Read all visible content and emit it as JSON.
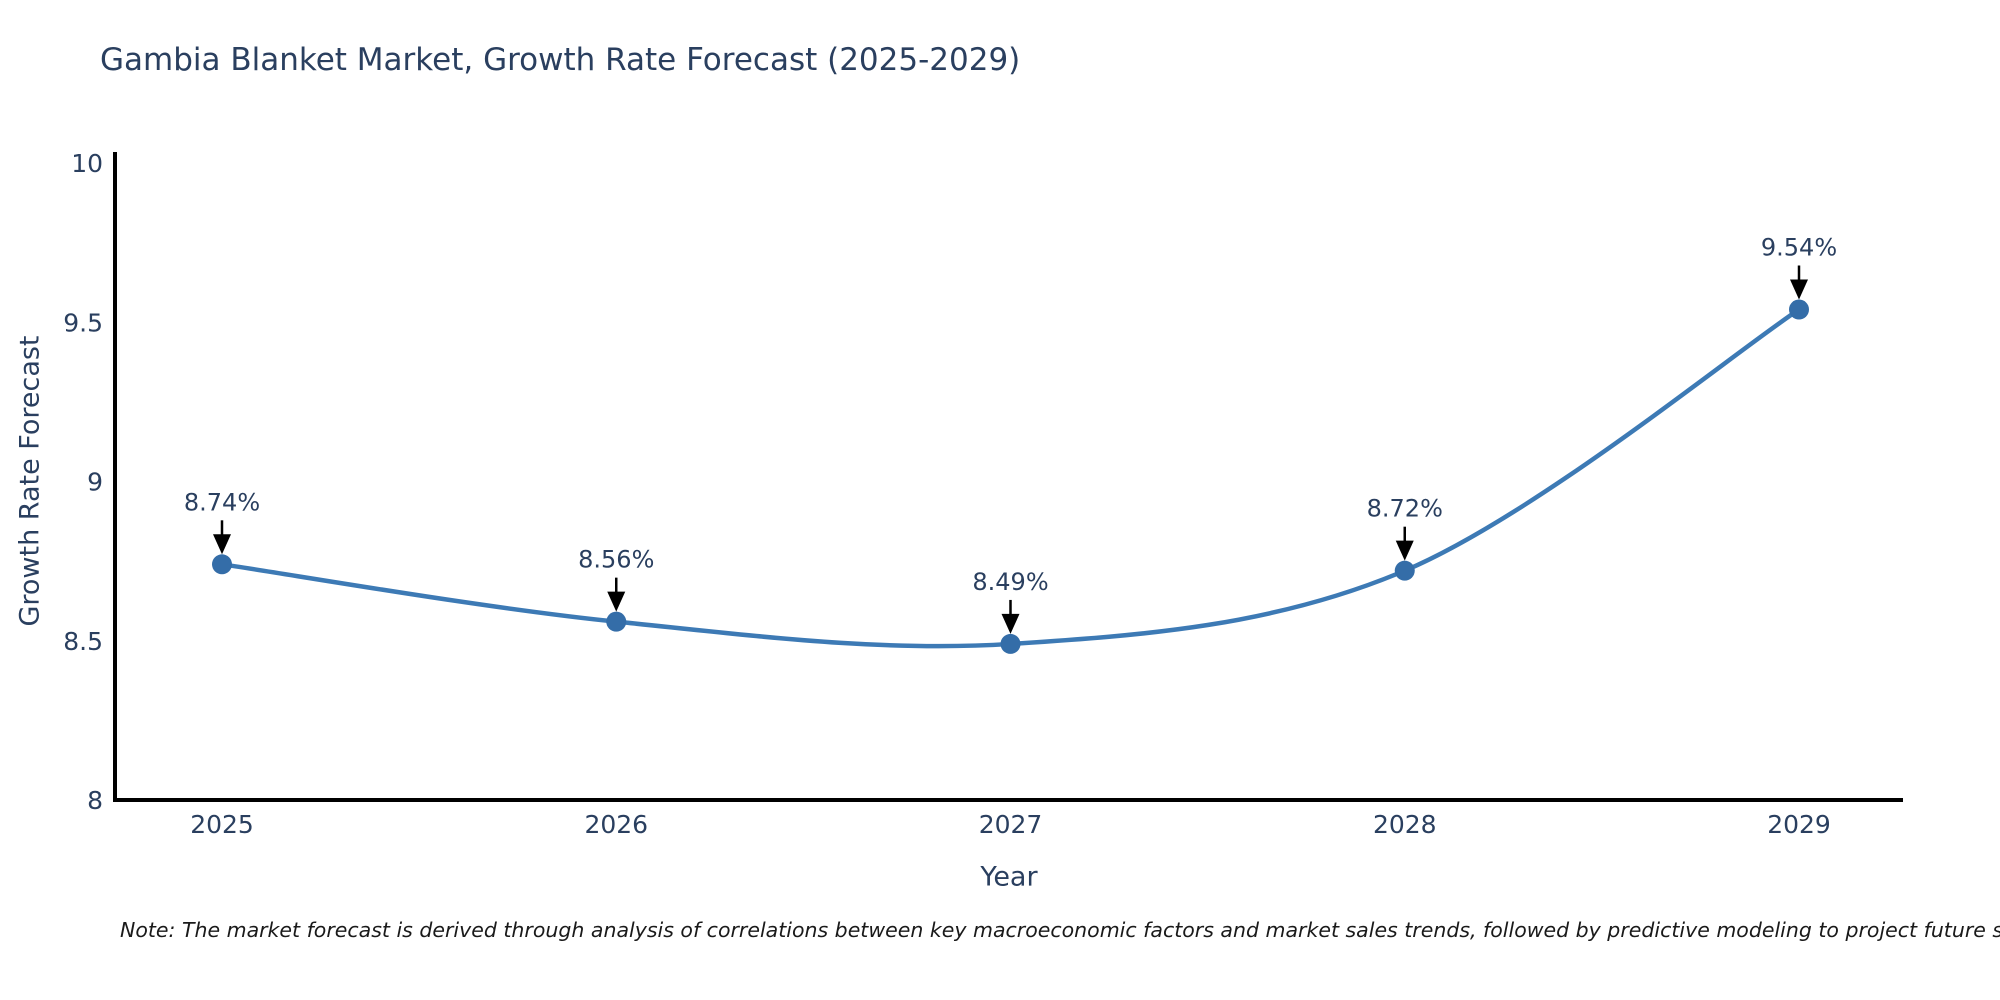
{
  "header": {
    "title": "Gambia Blanket Market, Growth Rate Forecast (2025-2029)"
  },
  "footer": {
    "note": "Note: The market forecast is derived through analysis of correlations between key macroeconomic factors and market sales trends, followed by predictive modeling to project future sales"
  },
  "colors": {
    "line": "#3d7ab5",
    "marker": "#346da8",
    "chart_text": "#2a3f5f",
    "axis_line": "#000000",
    "annotation_arrow": "#000000",
    "note_text": "#1a1a1a",
    "background": "#ffffff"
  },
  "chart_data": {
    "type": "line",
    "title": "Gambia Blanket Market, Growth Rate Forecast (2025-2029)",
    "x": [
      "2025",
      "2026",
      "2027",
      "2028",
      "2029"
    ],
    "series": [
      {
        "name": "Growth Rate Forecast",
        "values": [
          8.74,
          8.56,
          8.49,
          8.72,
          9.54
        ]
      }
    ],
    "point_labels": [
      "8.74%",
      "8.56%",
      "8.49%",
      "8.72%",
      "9.54%"
    ],
    "xlabel": "Year",
    "ylabel": "Growth Rate Forecast",
    "ylim": [
      8,
      10
    ],
    "yticks": [
      8,
      8.5,
      9,
      9.5,
      10
    ],
    "ytick_labels": [
      "8",
      "8.5",
      "9",
      "9.5",
      "10"
    ],
    "line_shape": "spline",
    "markers": true,
    "grid": false,
    "legend": "none"
  }
}
